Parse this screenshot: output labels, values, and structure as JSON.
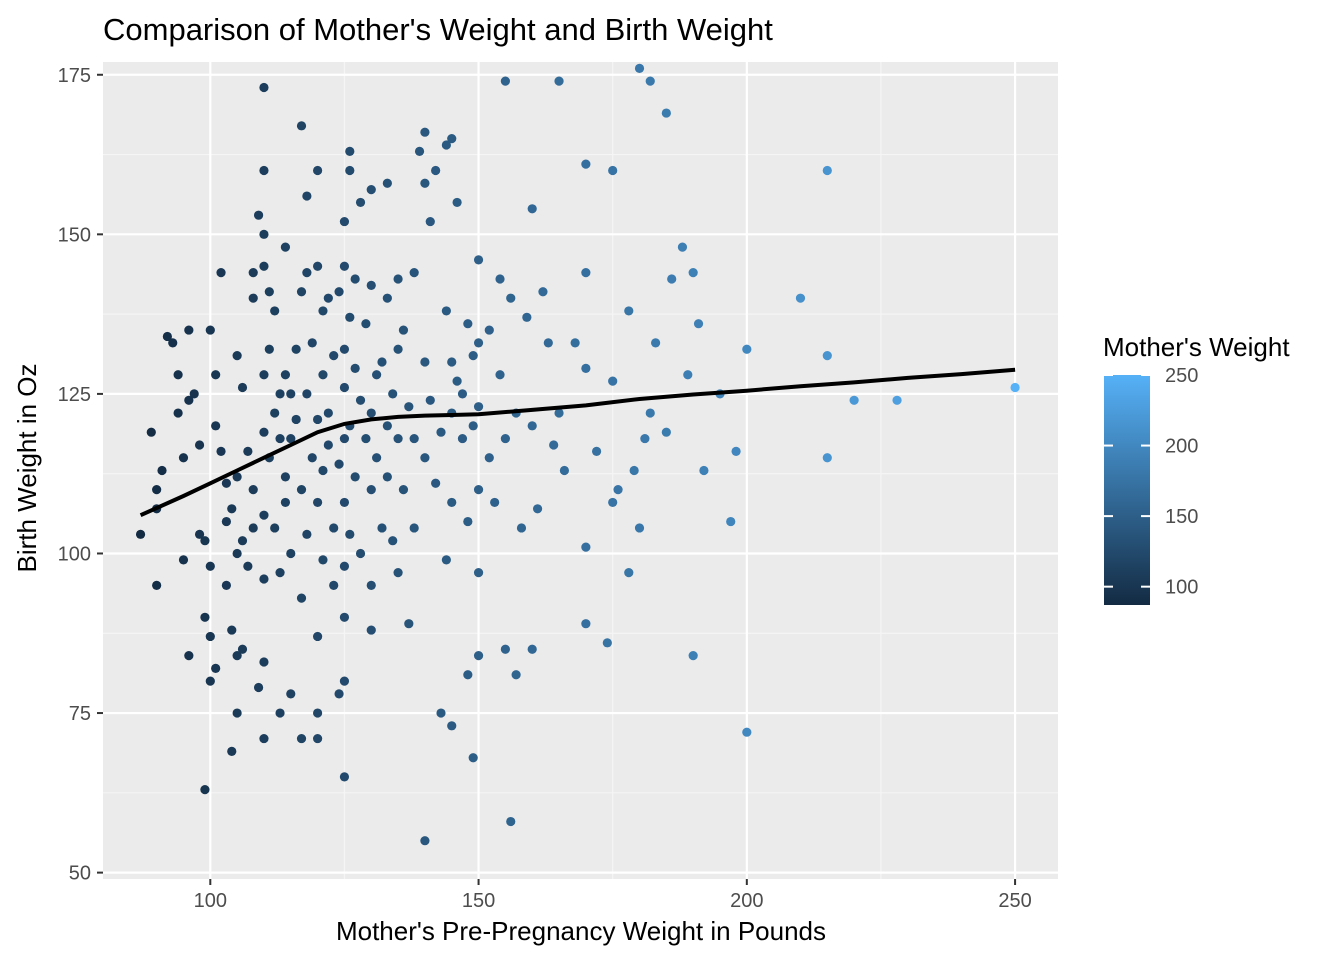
{
  "chart_data": {
    "type": "scatter",
    "title": "Comparison of Mother's Weight and Birth Weight",
    "xlabel": "Mother's Pre-Pregnancy Weight in Pounds",
    "ylabel": "Birth Weight in Oz",
    "xlim": [
      80,
      258
    ],
    "ylim": [
      49,
      177
    ],
    "x_ticks": [
      100,
      150,
      200,
      250
    ],
    "y_ticks": [
      50,
      75,
      100,
      125,
      150,
      175
    ],
    "grid": true,
    "legend": {
      "title": "Mother's Weight",
      "placement": "right",
      "ticks": [
        100,
        150,
        200,
        250
      ],
      "range": [
        87,
        250
      ],
      "color_low": "#132B43",
      "color_high": "#56B1F7"
    },
    "colors": {
      "panel": "#ebebeb",
      "grid_major": "#ffffff",
      "grid_minor": "#f5f5f5",
      "smooth": "#000000"
    },
    "points": [
      [
        87,
        103
      ],
      [
        89,
        119
      ],
      [
        90,
        95
      ],
      [
        90,
        107
      ],
      [
        90,
        110
      ],
      [
        91,
        113
      ],
      [
        92,
        134
      ],
      [
        93,
        133
      ],
      [
        94,
        128
      ],
      [
        94,
        122
      ],
      [
        95,
        99
      ],
      [
        95,
        115
      ],
      [
        96,
        84
      ],
      [
        96,
        124
      ],
      [
        96,
        135
      ],
      [
        97,
        125
      ],
      [
        98,
        117
      ],
      [
        98,
        103
      ],
      [
        99,
        63
      ],
      [
        99,
        90
      ],
      [
        99,
        102
      ],
      [
        100,
        80
      ],
      [
        100,
        87
      ],
      [
        100,
        98
      ],
      [
        100,
        135
      ],
      [
        101,
        82
      ],
      [
        101,
        128
      ],
      [
        101,
        120
      ],
      [
        102,
        144
      ],
      [
        102,
        116
      ],
      [
        103,
        111
      ],
      [
        103,
        105
      ],
      [
        103,
        95
      ],
      [
        104,
        107
      ],
      [
        104,
        88
      ],
      [
        104,
        69
      ],
      [
        105,
        75
      ],
      [
        105,
        84
      ],
      [
        105,
        100
      ],
      [
        105,
        112
      ],
      [
        105,
        131
      ],
      [
        106,
        126
      ],
      [
        106,
        85
      ],
      [
        106,
        102
      ],
      [
        107,
        116
      ],
      [
        107,
        98
      ],
      [
        108,
        140
      ],
      [
        108,
        144
      ],
      [
        108,
        110
      ],
      [
        108,
        104
      ],
      [
        109,
        153
      ],
      [
        109,
        79
      ],
      [
        110,
        173
      ],
      [
        110,
        160
      ],
      [
        110,
        150
      ],
      [
        110,
        145
      ],
      [
        110,
        128
      ],
      [
        110,
        119
      ],
      [
        110,
        106
      ],
      [
        110,
        96
      ],
      [
        110,
        83
      ],
      [
        110,
        71
      ],
      [
        111,
        141
      ],
      [
        111,
        115
      ],
      [
        111,
        132
      ],
      [
        112,
        138
      ],
      [
        112,
        122
      ],
      [
        112,
        104
      ],
      [
        113,
        118
      ],
      [
        113,
        125
      ],
      [
        113,
        97
      ],
      [
        113,
        75
      ],
      [
        114,
        128
      ],
      [
        114,
        112
      ],
      [
        114,
        148
      ],
      [
        114,
        108
      ],
      [
        115,
        125
      ],
      [
        115,
        118
      ],
      [
        115,
        78
      ],
      [
        115,
        100
      ],
      [
        116,
        121
      ],
      [
        116,
        132
      ],
      [
        117,
        167
      ],
      [
        117,
        110
      ],
      [
        117,
        141
      ],
      [
        117,
        93
      ],
      [
        117,
        71
      ],
      [
        118,
        144
      ],
      [
        118,
        103
      ],
      [
        118,
        156
      ],
      [
        118,
        125
      ],
      [
        119,
        115
      ],
      [
        119,
        133
      ],
      [
        120,
        160
      ],
      [
        120,
        121
      ],
      [
        120,
        108
      ],
      [
        120,
        145
      ],
      [
        120,
        87
      ],
      [
        120,
        75
      ],
      [
        120,
        71
      ],
      [
        121,
        138
      ],
      [
        121,
        113
      ],
      [
        121,
        128
      ],
      [
        121,
        99
      ],
      [
        122,
        140
      ],
      [
        122,
        122
      ],
      [
        122,
        117
      ],
      [
        123,
        104
      ],
      [
        123,
        131
      ],
      [
        123,
        95
      ],
      [
        124,
        78
      ],
      [
        124,
        141
      ],
      [
        124,
        114
      ],
      [
        125,
        152
      ],
      [
        125,
        145
      ],
      [
        125,
        132
      ],
      [
        125,
        126
      ],
      [
        125,
        118
      ],
      [
        125,
        108
      ],
      [
        125,
        98
      ],
      [
        125,
        90
      ],
      [
        125,
        80
      ],
      [
        125,
        65
      ],
      [
        126,
        163
      ],
      [
        126,
        160
      ],
      [
        126,
        137
      ],
      [
        126,
        120
      ],
      [
        126,
        103
      ],
      [
        127,
        143
      ],
      [
        127,
        129
      ],
      [
        127,
        112
      ],
      [
        128,
        155
      ],
      [
        128,
        124
      ],
      [
        128,
        100
      ],
      [
        129,
        136
      ],
      [
        129,
        118
      ],
      [
        130,
        157
      ],
      [
        130,
        142
      ],
      [
        130,
        122
      ],
      [
        130,
        110
      ],
      [
        130,
        95
      ],
      [
        130,
        88
      ],
      [
        131,
        128
      ],
      [
        131,
        115
      ],
      [
        132,
        130
      ],
      [
        132,
        104
      ],
      [
        133,
        158
      ],
      [
        133,
        140
      ],
      [
        133,
        120
      ],
      [
        133,
        112
      ],
      [
        134,
        125
      ],
      [
        134,
        102
      ],
      [
        135,
        143
      ],
      [
        135,
        132
      ],
      [
        135,
        118
      ],
      [
        135,
        97
      ],
      [
        136,
        135
      ],
      [
        136,
        110
      ],
      [
        137,
        123
      ],
      [
        137,
        89
      ],
      [
        138,
        144
      ],
      [
        138,
        118
      ],
      [
        138,
        104
      ],
      [
        139,
        163
      ],
      [
        140,
        166
      ],
      [
        140,
        158
      ],
      [
        140,
        130
      ],
      [
        140,
        115
      ],
      [
        140,
        55
      ],
      [
        141,
        152
      ],
      [
        141,
        124
      ],
      [
        142,
        160
      ],
      [
        142,
        111
      ],
      [
        143,
        119
      ],
      [
        143,
        75
      ],
      [
        144,
        164
      ],
      [
        144,
        138
      ],
      [
        144,
        99
      ],
      [
        145,
        165
      ],
      [
        145,
        130
      ],
      [
        145,
        122
      ],
      [
        145,
        108
      ],
      [
        145,
        73
      ],
      [
        146,
        155
      ],
      [
        146,
        127
      ],
      [
        147,
        125
      ],
      [
        147,
        118
      ],
      [
        148,
        136
      ],
      [
        148,
        105
      ],
      [
        148,
        81
      ],
      [
        149,
        131
      ],
      [
        149,
        120
      ],
      [
        149,
        68
      ],
      [
        150,
        146
      ],
      [
        150,
        133
      ],
      [
        150,
        123
      ],
      [
        150,
        110
      ],
      [
        150,
        97
      ],
      [
        150,
        84
      ],
      [
        152,
        135
      ],
      [
        152,
        115
      ],
      [
        153,
        108
      ],
      [
        154,
        143
      ],
      [
        154,
        128
      ],
      [
        155,
        174
      ],
      [
        155,
        85
      ],
      [
        155,
        118
      ],
      [
        156,
        140
      ],
      [
        156,
        58
      ],
      [
        157,
        81
      ],
      [
        157,
        122
      ],
      [
        158,
        104
      ],
      [
        159,
        137
      ],
      [
        160,
        154
      ],
      [
        160,
        120
      ],
      [
        160,
        85
      ],
      [
        161,
        107
      ],
      [
        162,
        141
      ],
      [
        163,
        133
      ],
      [
        164,
        117
      ],
      [
        165,
        174
      ],
      [
        165,
        122
      ],
      [
        166,
        113
      ],
      [
        168,
        133
      ],
      [
        170,
        161
      ],
      [
        170,
        144
      ],
      [
        170,
        129
      ],
      [
        170,
        101
      ],
      [
        170,
        89
      ],
      [
        172,
        116
      ],
      [
        174,
        86
      ],
      [
        175,
        160
      ],
      [
        175,
        127
      ],
      [
        175,
        108
      ],
      [
        176,
        110
      ],
      [
        178,
        138
      ],
      [
        178,
        97
      ],
      [
        179,
        113
      ],
      [
        180,
        176
      ],
      [
        180,
        104
      ],
      [
        181,
        118
      ],
      [
        182,
        174
      ],
      [
        182,
        122
      ],
      [
        183,
        133
      ],
      [
        185,
        169
      ],
      [
        185,
        119
      ],
      [
        186,
        143
      ],
      [
        188,
        148
      ],
      [
        189,
        128
      ],
      [
        190,
        144
      ],
      [
        190,
        84
      ],
      [
        191,
        136
      ],
      [
        192,
        113
      ],
      [
        195,
        125
      ],
      [
        197,
        105
      ],
      [
        198,
        116
      ],
      [
        200,
        132
      ],
      [
        200,
        72
      ],
      [
        210,
        140
      ],
      [
        215,
        160
      ],
      [
        215,
        131
      ],
      [
        215,
        115
      ],
      [
        220,
        124
      ],
      [
        228,
        124
      ],
      [
        250,
        126
      ]
    ],
    "smooth": [
      [
        87,
        106
      ],
      [
        95,
        109
      ],
      [
        100,
        111
      ],
      [
        105,
        113
      ],
      [
        110,
        115
      ],
      [
        115,
        117
      ],
      [
        120,
        119
      ],
      [
        125,
        120.3
      ],
      [
        130,
        121
      ],
      [
        135,
        121.4
      ],
      [
        140,
        121.6
      ],
      [
        145,
        121.7
      ],
      [
        150,
        121.8
      ],
      [
        160,
        122.5
      ],
      [
        170,
        123.2
      ],
      [
        180,
        124.2
      ],
      [
        190,
        124.9
      ],
      [
        200,
        125.5
      ],
      [
        210,
        126.2
      ],
      [
        220,
        126.8
      ],
      [
        230,
        127.5
      ],
      [
        240,
        128.1
      ],
      [
        250,
        128.8
      ]
    ]
  }
}
